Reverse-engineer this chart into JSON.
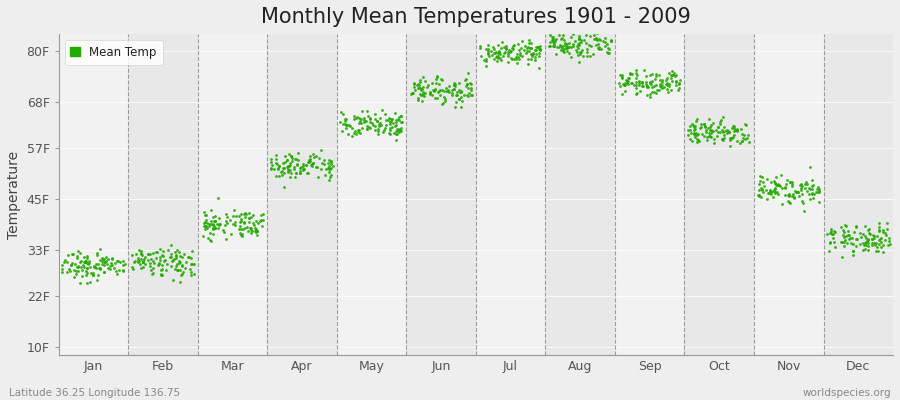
{
  "title": "Monthly Mean Temperatures 1901 - 2009",
  "ylabel": "Temperature",
  "xlabel_months": [
    "Jan",
    "Feb",
    "Mar",
    "Apr",
    "May",
    "Jun",
    "Jul",
    "Aug",
    "Sep",
    "Oct",
    "Nov",
    "Dec"
  ],
  "ytick_values": [
    10,
    22,
    33,
    45,
    57,
    68,
    80
  ],
  "ytick_labels": [
    "10F",
    "22F",
    "33F",
    "45F",
    "57F",
    "68F",
    "80F"
  ],
  "ylim": [
    8,
    84
  ],
  "xlim": [
    0,
    12
  ],
  "dot_color": "#22AA00",
  "bg_color": "#eeeeee",
  "band_color_odd": "#e8e8e8",
  "band_color_even": "#f2f2f2",
  "title_fontsize": 15,
  "axis_fontsize": 10,
  "tick_fontsize": 9,
  "footer_left": "Latitude 36.25 Longitude 136.75",
  "footer_right": "worldspecies.org",
  "legend_label": "Mean Temp",
  "monthly_means_celsius": [
    -1.5,
    -1.0,
    4.0,
    11.5,
    17.0,
    21.5,
    26.5,
    27.5,
    22.5,
    16.0,
    8.5,
    2.0
  ],
  "monthly_stds_celsius": [
    2.5,
    2.5,
    2.5,
    2.0,
    2.0,
    2.0,
    1.5,
    1.5,
    2.0,
    2.0,
    2.0,
    2.5
  ],
  "n_years": 109,
  "random_seed": 7
}
